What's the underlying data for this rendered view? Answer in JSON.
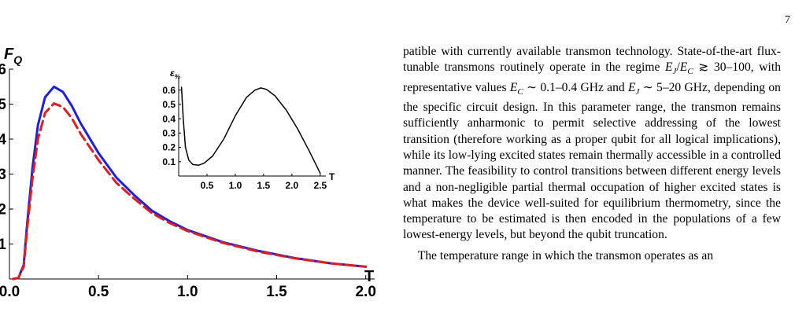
{
  "page_number": "7",
  "chart_data": [
    {
      "type": "line",
      "title": "",
      "ylabel": "F",
      "ylabel_subscript": "Q",
      "xlabel": "T",
      "xlim": [
        0,
        2.05
      ],
      "ylim": [
        0,
        6
      ],
      "x_ticks": [
        "0.0",
        "0.5",
        "1.0",
        "1.5",
        "2.0"
      ],
      "y_ticks": [
        "1",
        "2",
        "3",
        "4",
        "5",
        "6"
      ],
      "series": [
        {
          "color": "#1f1fdd",
          "style": "solid",
          "points": [
            [
              0.02,
              0
            ],
            [
              0.05,
              0.03
            ],
            [
              0.08,
              0.4
            ],
            [
              0.1,
              1.6
            ],
            [
              0.13,
              3.2
            ],
            [
              0.16,
              4.4
            ],
            [
              0.2,
              5.2
            ],
            [
              0.25,
              5.5
            ],
            [
              0.3,
              5.35
            ],
            [
              0.35,
              4.95
            ],
            [
              0.4,
              4.45
            ],
            [
              0.5,
              3.6
            ],
            [
              0.6,
              2.9
            ],
            [
              0.7,
              2.4
            ],
            [
              0.8,
              1.95
            ],
            [
              0.9,
              1.65
            ],
            [
              1.0,
              1.4
            ],
            [
              1.2,
              1.05
            ],
            [
              1.4,
              0.8
            ],
            [
              1.6,
              0.6
            ],
            [
              1.8,
              0.45
            ],
            [
              2.0,
              0.35
            ]
          ]
        },
        {
          "color": "#dd1f1f",
          "style": "dashed",
          "points": [
            [
              0.02,
              0
            ],
            [
              0.05,
              0.03
            ],
            [
              0.08,
              0.35
            ],
            [
              0.1,
              1.45
            ],
            [
              0.13,
              2.9
            ],
            [
              0.16,
              4.0
            ],
            [
              0.2,
              4.75
            ],
            [
              0.25,
              5.02
            ],
            [
              0.3,
              4.92
            ],
            [
              0.35,
              4.6
            ],
            [
              0.4,
              4.15
            ],
            [
              0.5,
              3.4
            ],
            [
              0.6,
              2.75
            ],
            [
              0.7,
              2.3
            ],
            [
              0.8,
              1.88
            ],
            [
              0.9,
              1.6
            ],
            [
              1.0,
              1.37
            ],
            [
              1.2,
              1.03
            ],
            [
              1.4,
              0.78
            ],
            [
              1.6,
              0.59
            ],
            [
              1.8,
              0.45
            ],
            [
              2.0,
              0.35
            ]
          ]
        }
      ]
    },
    {
      "type": "line",
      "title": "",
      "ylabel": "ε",
      "ylabel_subscript": "%",
      "xlabel": "T",
      "xlim": [
        0,
        2.6
      ],
      "ylim": [
        0,
        0.68
      ],
      "x_ticks": [
        "0.5",
        "1.0",
        "1.5",
        "2.0",
        "2.5"
      ],
      "y_ticks": [
        "0.1",
        "0.2",
        "0.3",
        "0.4",
        "0.5",
        "0.6"
      ],
      "series": [
        {
          "color": "#000000",
          "style": "solid",
          "points": [
            [
              0.05,
              0.62
            ],
            [
              0.08,
              0.4
            ],
            [
              0.12,
              0.2
            ],
            [
              0.18,
              0.11
            ],
            [
              0.25,
              0.08
            ],
            [
              0.35,
              0.075
            ],
            [
              0.45,
              0.09
            ],
            [
              0.6,
              0.14
            ],
            [
              0.8,
              0.26
            ],
            [
              1.0,
              0.42
            ],
            [
              1.2,
              0.55
            ],
            [
              1.35,
              0.6
            ],
            [
              1.45,
              0.615
            ],
            [
              1.55,
              0.605
            ],
            [
              1.7,
              0.56
            ],
            [
              1.9,
              0.46
            ],
            [
              2.1,
              0.33
            ],
            [
              2.3,
              0.18
            ],
            [
              2.45,
              0.06
            ],
            [
              2.5,
              0.02
            ]
          ]
        }
      ]
    }
  ],
  "text": {
    "para1_parts": [
      {
        "t": "patible with currently available transmon technology. State-of-the-art flux-tunable transmons routinely operate in the regime "
      },
      {
        "t": "E",
        "i": true
      },
      {
        "t": "J",
        "sub": true
      },
      {
        "t": "/"
      },
      {
        "t": "E",
        "i": true
      },
      {
        "t": "C",
        "sub": true
      },
      {
        "t": " ≳ 30–100, with representative values "
      },
      {
        "t": "E",
        "i": true
      },
      {
        "t": "C",
        "sub": true
      },
      {
        "t": " ∼ 0.1–0.4 GHz and "
      },
      {
        "t": "E",
        "i": true
      },
      {
        "t": "J",
        "sub": true
      },
      {
        "t": " ∼ 5–20 GHz, depending on the specific circuit design. In this parameter range, the transmon remains sufficiently anharmonic to permit selective addressing of the lowest transition (therefore working as a proper qubit for all logical implications), while its low-lying excited states remain thermally accessible in a controlled manner. The feasibility to control transitions between different energy levels and a non-negligible partial thermal occupation of higher excited states is what makes the device well-suited for equilibrium thermometry, since the temperature to be estimated is then encoded in the populations of a few lowest-energy levels, but beyond the qubit truncation."
      }
    ],
    "para2": "The temperature range in which the transmon operates as an"
  }
}
